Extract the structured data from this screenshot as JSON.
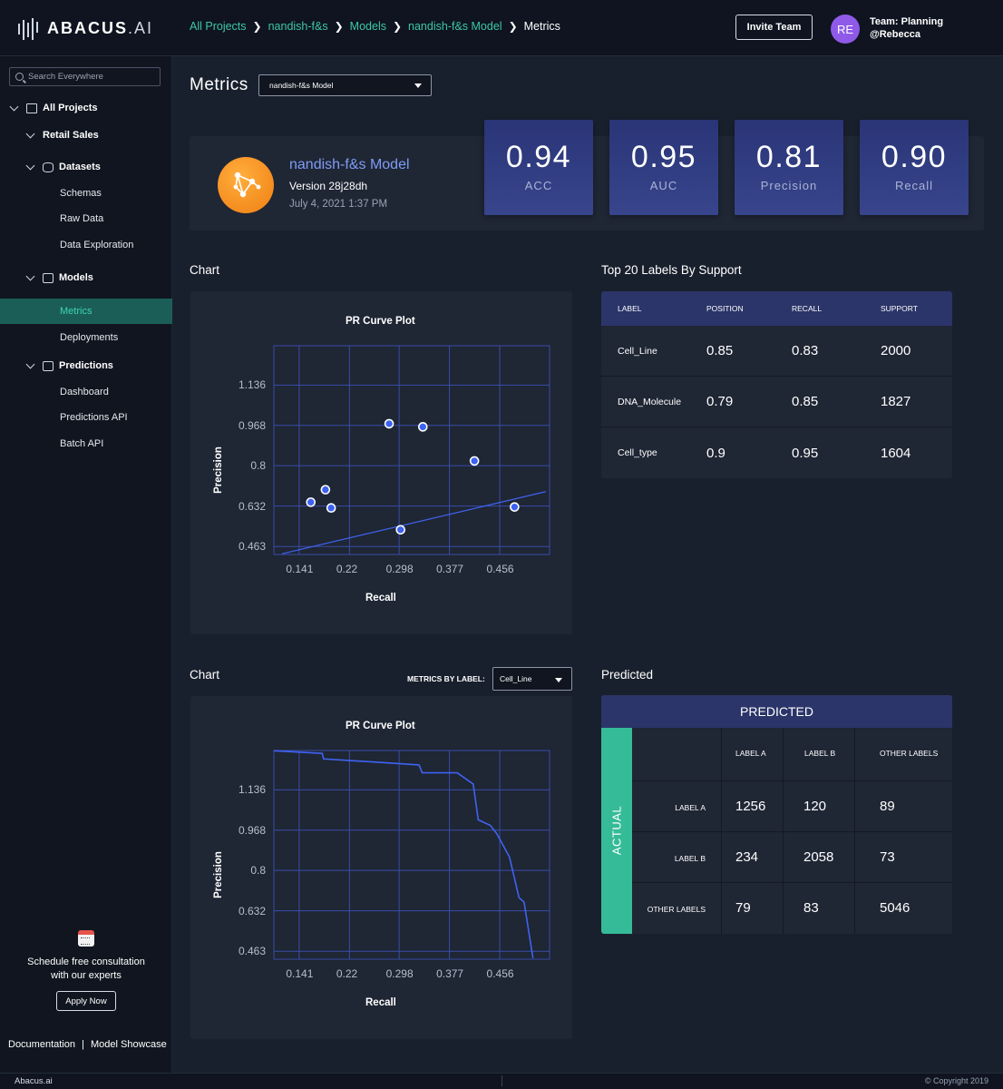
{
  "brand": {
    "name_bold": "ABACUS",
    "name_light": ".AI"
  },
  "breadcrumb": [
    "All Projects",
    "nandish-f&s",
    "Models",
    "nandish-f&s Model",
    "Metrics"
  ],
  "header": {
    "invite_label": "Invite Team",
    "avatar_initials": "RE",
    "team_label": "Team:",
    "team_name": "Planning",
    "user_handle": "@Rebecca",
    "avatar_color": "#8f5ae8"
  },
  "sidebar": {
    "search_placeholder": "Search Everywhere",
    "all_projects": "All Projects",
    "project": "Retail Sales",
    "datasets": {
      "label": "Datasets",
      "items": [
        "Schemas",
        "Raw Data",
        "Data Exploration"
      ]
    },
    "models": {
      "label": "Models",
      "items": [
        "Metrics",
        "Deployments"
      ],
      "active": "Metrics"
    },
    "predictions": {
      "label": "Predictions",
      "items": [
        "Dashboard",
        "Predictions API",
        "Batch API"
      ]
    },
    "promo_line1": "Schedule free consultation",
    "promo_line2": "with our experts",
    "apply_label": "Apply Now",
    "doc_link": "Documentation",
    "doc_sep": "|",
    "showcase_link": "Model Showcase"
  },
  "footer": {
    "left": "Abacus.ai",
    "right": "© Copyright 2019"
  },
  "page": {
    "title": "Metrics",
    "model_select": "nandish-f&s Model"
  },
  "model": {
    "name": "nandish-f&s Model",
    "version": "Version 28j28dh",
    "date": "July 4, 2021  1:37 PM",
    "icon_color": "#f07e12"
  },
  "metrics": [
    {
      "value": "0.94",
      "name": "ACC"
    },
    {
      "value": "0.95",
      "name": "AUC"
    },
    {
      "value": "0.81",
      "name": "Precision"
    },
    {
      "value": "0.90",
      "name": "Recall"
    }
  ],
  "chart1": {
    "section_title": "Chart"
  },
  "chart2": {
    "section_title": "Chart",
    "metrics_by_label": "METRICS BY LABEL:",
    "label_select": "Cell_Line"
  },
  "labels_table": {
    "section_title": "Top 20 Labels By Support",
    "columns": [
      "LABEL",
      "POSITION",
      "RECALL",
      "SUPPORT"
    ],
    "rows": [
      [
        "Cell_Line",
        "0.85",
        "0.83",
        "2000"
      ],
      [
        "DNA_Molecule",
        "0.79",
        "0.85",
        "1827"
      ],
      [
        "Cell_type",
        "0.9",
        "0.95",
        "1604"
      ]
    ]
  },
  "confusion": {
    "section_title": "Predicted",
    "header": "PREDICTED",
    "actual_label": "ACTUAL",
    "columns": [
      "LABEL A",
      "LABEL B",
      "OTHER LABELS"
    ],
    "rows": [
      "LABEL A",
      "LABEL B",
      "OTHER LABELS"
    ],
    "values": [
      [
        "1256",
        "120",
        "89"
      ],
      [
        "234",
        "2058",
        "73"
      ],
      [
        "79",
        "83",
        "5046"
      ]
    ]
  },
  "chart_data": [
    {
      "type": "scatter",
      "title": "PR Curve Plot",
      "xlabel": "Recall",
      "ylabel": "Precision",
      "x_ticks": [
        "0.141",
        "0.22",
        "0.298",
        "0.377",
        "0.456"
      ],
      "y_ticks": [
        "1.136",
        "0.968",
        "0.8",
        "0.632",
        "0.463"
      ],
      "xlim": [
        0.102,
        0.535
      ],
      "ylim": [
        0.43,
        1.3
      ],
      "grid": true,
      "points": [
        {
          "x": 0.16,
          "y": 0.648
        },
        {
          "x": 0.183,
          "y": 0.7
        },
        {
          "x": 0.192,
          "y": 0.624
        },
        {
          "x": 0.283,
          "y": 0.975
        },
        {
          "x": 0.301,
          "y": 0.533
        },
        {
          "x": 0.336,
          "y": 0.962
        },
        {
          "x": 0.417,
          "y": 0.82
        },
        {
          "x": 0.48,
          "y": 0.628
        }
      ],
      "trendline": [
        {
          "x": 0.115,
          "y": 0.433
        },
        {
          "x": 0.529,
          "y": 0.692
        }
      ]
    },
    {
      "type": "line",
      "title": "PR Curve Plot",
      "xlabel": "Recall",
      "ylabel": "Precision",
      "x_ticks": [
        "0.141",
        "0.22",
        "0.298",
        "0.377",
        "0.456"
      ],
      "y_ticks": [
        "1.136",
        "0.968",
        "0.8",
        "0.632",
        "0.463"
      ],
      "xlim": [
        0.102,
        0.535
      ],
      "ylim": [
        0.43,
        1.3
      ],
      "grid": true,
      "line": [
        {
          "x": 0.102,
          "y": 1.299
        },
        {
          "x": 0.178,
          "y": 1.288
        },
        {
          "x": 0.18,
          "y": 1.265
        },
        {
          "x": 0.26,
          "y": 1.252
        },
        {
          "x": 0.33,
          "y": 1.24
        },
        {
          "x": 0.335,
          "y": 1.207
        },
        {
          "x": 0.39,
          "y": 1.207
        },
        {
          "x": 0.415,
          "y": 1.16
        },
        {
          "x": 0.423,
          "y": 1.011
        },
        {
          "x": 0.442,
          "y": 0.988
        },
        {
          "x": 0.452,
          "y": 0.954
        },
        {
          "x": 0.472,
          "y": 0.856
        },
        {
          "x": 0.487,
          "y": 0.687
        },
        {
          "x": 0.495,
          "y": 0.668
        },
        {
          "x": 0.509,
          "y": 0.435
        }
      ]
    }
  ]
}
